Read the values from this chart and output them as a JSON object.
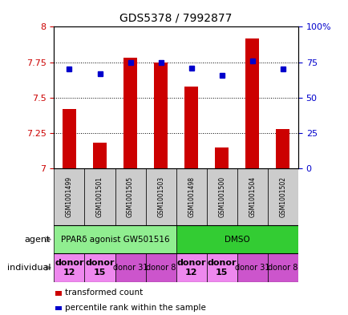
{
  "title": "GDS5378 / 7992877",
  "samples": [
    "GSM1001499",
    "GSM1001501",
    "GSM1001505",
    "GSM1001503",
    "GSM1001498",
    "GSM1001500",
    "GSM1001504",
    "GSM1001502"
  ],
  "transformed_counts": [
    7.42,
    7.18,
    7.78,
    7.75,
    7.58,
    7.15,
    7.92,
    7.28
  ],
  "percentile_ranks": [
    70,
    67,
    75,
    75,
    71,
    66,
    76,
    70
  ],
  "ylim": [
    7.0,
    8.0
  ],
  "y2lim": [
    0,
    100
  ],
  "yticks": [
    7.0,
    7.25,
    7.5,
    7.75,
    8.0
  ],
  "y2ticks": [
    0,
    25,
    50,
    75,
    100
  ],
  "ytick_labels": [
    "7",
    "7.25",
    "7.5",
    "7.75",
    "8"
  ],
  "y2tick_labels": [
    "0",
    "25",
    "50",
    "75",
    "100%"
  ],
  "bar_color": "#cc0000",
  "dot_color": "#0000cc",
  "agent_groups": [
    {
      "label": "PPARδ agonist GW501516",
      "start": 0,
      "end": 4,
      "color": "#90ee90"
    },
    {
      "label": "DMSO",
      "start": 4,
      "end": 8,
      "color": "#33cc33"
    }
  ],
  "individual_groups": [
    {
      "label": "donor\n12",
      "start": 0,
      "end": 1,
      "color": "#ee88ee",
      "fontsize": 8,
      "bold": true
    },
    {
      "label": "donor\n15",
      "start": 1,
      "end": 2,
      "color": "#ee88ee",
      "fontsize": 8,
      "bold": true
    },
    {
      "label": "donor 31",
      "start": 2,
      "end": 3,
      "color": "#cc55cc",
      "fontsize": 7,
      "bold": false
    },
    {
      "label": "donor 8",
      "start": 3,
      "end": 4,
      "color": "#cc55cc",
      "fontsize": 7,
      "bold": false
    },
    {
      "label": "donor\n12",
      "start": 4,
      "end": 5,
      "color": "#ee88ee",
      "fontsize": 8,
      "bold": true
    },
    {
      "label": "donor\n15",
      "start": 5,
      "end": 6,
      "color": "#ee88ee",
      "fontsize": 8,
      "bold": true
    },
    {
      "label": "donor 31",
      "start": 6,
      "end": 7,
      "color": "#cc55cc",
      "fontsize": 7,
      "bold": false
    },
    {
      "label": "donor 8",
      "start": 7,
      "end": 8,
      "color": "#cc55cc",
      "fontsize": 7,
      "bold": false
    }
  ],
  "legend_items": [
    {
      "color": "#cc0000",
      "label": "transformed count"
    },
    {
      "color": "#0000cc",
      "label": "percentile rank within the sample"
    }
  ],
  "grid_color": "black",
  "grid_style": "dotted",
  "sample_box_color": "#cccccc",
  "left_label_agent": "agent",
  "left_label_individual": "individual"
}
